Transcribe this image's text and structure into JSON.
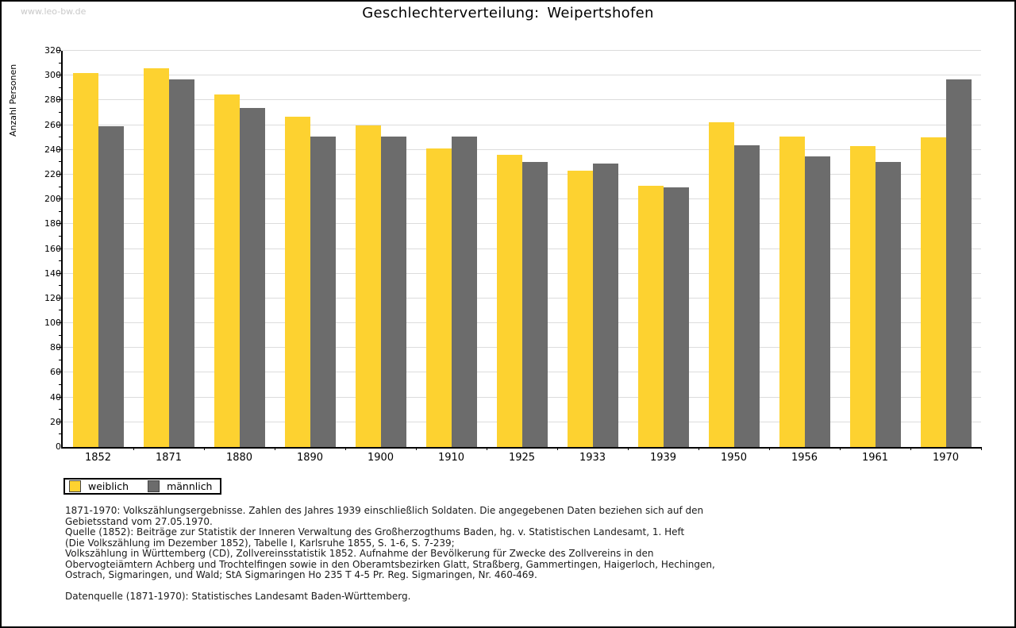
{
  "watermark": "www.leo-bw.de",
  "title": {
    "prefix": "Geschlechterverteilung:",
    "subject": "Weipertshofen"
  },
  "chart_data": {
    "type": "bar",
    "title": "Geschlechterverteilung: Weipertshofen",
    "xlabel": "",
    "ylabel": "Anzahl Personen",
    "ylim": [
      0,
      320
    ],
    "ytick_step": 20,
    "yminor_step": 10,
    "grid": true,
    "legend_position": "bottom-left",
    "categories": [
      "1852",
      "1871",
      "1880",
      "1890",
      "1900",
      "1910",
      "1925",
      "1933",
      "1939",
      "1950",
      "1956",
      "1961",
      "1970"
    ],
    "series": [
      {
        "name": "weiblich",
        "color": "#fdd230",
        "values": [
          302,
          306,
          285,
          267,
          260,
          241,
          236,
          223,
          211,
          262,
          251,
          243,
          250
        ]
      },
      {
        "name": "männlich",
        "color": "#6c6c6c",
        "values": [
          259,
          297,
          274,
          251,
          251,
          251,
          230,
          229,
          210,
          244,
          235,
          230,
          297
        ]
      }
    ]
  },
  "legend": {
    "items": [
      {
        "label": "weiblich",
        "color": "#fdd230"
      },
      {
        "label": "männlich",
        "color": "#6c6c6c"
      }
    ]
  },
  "footnotes": {
    "lines": [
      "1871-1970: Volkszählungsergebnisse. Zahlen des Jahres 1939 einschließlich Soldaten. Die angegebenen Daten beziehen sich auf den",
      "Gebietsstand vom 27.05.1970.",
      "Quelle (1852): Beiträge zur Statistik der Inneren Verwaltung des Großherzogthums Baden, hg. v. Statistischen Landesamt, 1. Heft",
      "(Die Volkszählung im Dezember 1852), Tabelle I, Karlsruhe 1855, S. 1-6, S. 7-239;",
      "Volkszählung in Württemberg (CD), Zollvereinsstatistik 1852. Aufnahme der Bevölkerung für Zwecke des Zollvereins in den",
      "Obervogteiämtern Achberg und Trochtelfingen sowie in den Oberamtsbezirken Glatt, Straßberg, Gammertingen, Haigerloch, Hechingen,",
      "Ostrach, Sigmaringen, und Wald; StA Sigmaringen Ho 235 T 4-5 Pr. Reg. Sigmaringen, Nr. 460-469."
    ],
    "datasource": "Datenquelle (1871-1970): Statistisches Landesamt Baden-Württemberg."
  }
}
